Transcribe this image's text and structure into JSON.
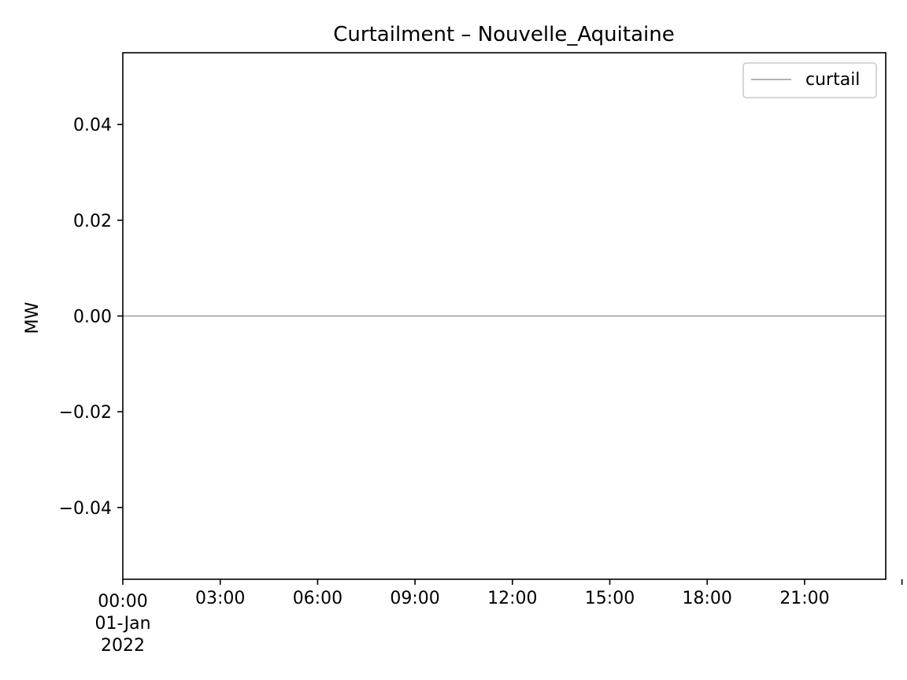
{
  "chart_data": {
    "type": "line",
    "title": "Curtailment – Nouvelle_Aquitaine",
    "xlabel": "",
    "ylabel": "MW",
    "x_start": "2022-01-01 00:00",
    "x_end": "2022-01-01 23:00",
    "xlim": [
      "2022-01-01 00:00",
      "2022-01-01 23:30"
    ],
    "xticks": [
      {
        "time": "2022-01-01 00:00",
        "label": [
          "00:00",
          "01-Jan",
          "2022"
        ]
      },
      {
        "time": "2022-01-01 03:00",
        "label": [
          "03:00"
        ]
      },
      {
        "time": "2022-01-01 06:00",
        "label": [
          "06:00"
        ]
      },
      {
        "time": "2022-01-01 09:00",
        "label": [
          "09:00"
        ]
      },
      {
        "time": "2022-01-01 12:00",
        "label": [
          "12:00"
        ]
      },
      {
        "time": "2022-01-01 15:00",
        "label": [
          "15:00"
        ]
      },
      {
        "time": "2022-01-01 18:00",
        "label": [
          "18:00"
        ]
      },
      {
        "time": "2022-01-01 21:00",
        "label": [
          "21:00"
        ]
      },
      {
        "time": "2022-01-02 00:00",
        "label": []
      }
    ],
    "ylim": [
      -0.055,
      0.055
    ],
    "yticks": [
      {
        "value": -0.04,
        "label": "−0.04"
      },
      {
        "value": -0.02,
        "label": "−0.02"
      },
      {
        "value": 0.0,
        "label": "0.00"
      },
      {
        "value": 0.02,
        "label": "0.02"
      },
      {
        "value": 0.04,
        "label": "0.04"
      }
    ],
    "grid": false,
    "legend": "top-right",
    "series": [
      {
        "name": "curtail",
        "color": "#999999",
        "value": 0.0
      }
    ]
  }
}
